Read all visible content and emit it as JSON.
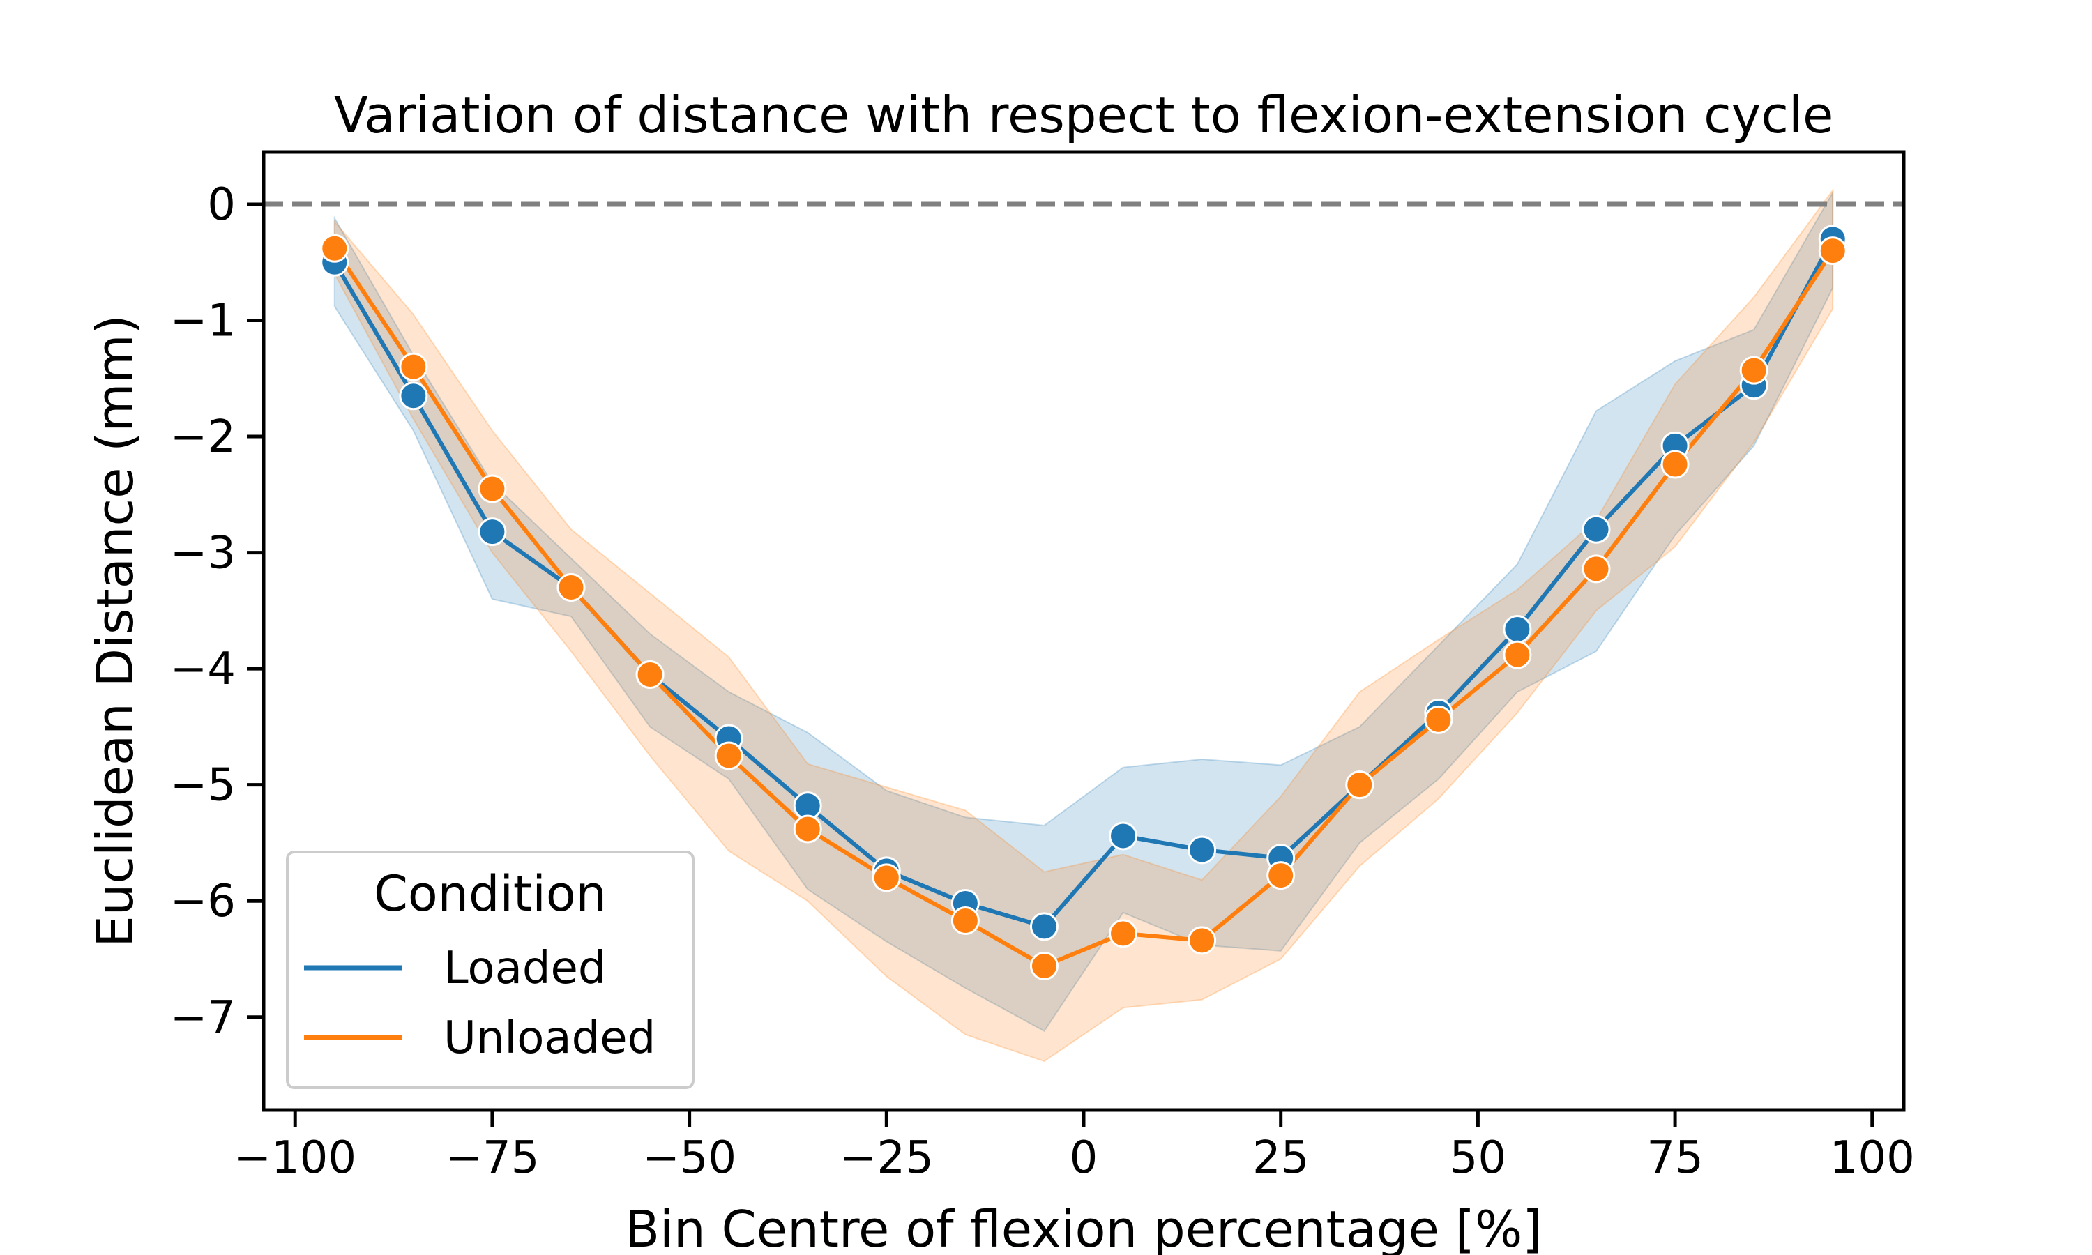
{
  "chart_data": {
    "type": "line",
    "title": "Variation of distance with respect to flexion-extension cycle",
    "xlabel": "Bin Centre of flexion percentage [%]",
    "ylabel": "Euclidean Distance (mm)",
    "xlim": [
      -104,
      104
    ],
    "ylim": [
      -7.8,
      0.45
    ],
    "x_ticks": [
      -100,
      -75,
      -50,
      -25,
      0,
      25,
      50,
      75,
      100
    ],
    "x_tick_labels": [
      "−100",
      "−75",
      "−50",
      "−25",
      "0",
      "25",
      "50",
      "75",
      "100"
    ],
    "y_ticks": [
      0,
      -1,
      -2,
      -3,
      -4,
      -5,
      -6,
      -7
    ],
    "y_tick_labels": [
      "0",
      "−1",
      "−2",
      "−3",
      "−4",
      "−5",
      "−6",
      "−7"
    ],
    "reference_line": {
      "y": 0,
      "style": "dashed",
      "color": "#808080"
    },
    "grid": false,
    "legend": {
      "title": "Condition",
      "placement": "lower-left",
      "labels": [
        "Loaded",
        "Unloaded"
      ]
    },
    "x": [
      -95,
      -85,
      -75,
      -65,
      -55,
      -45,
      -35,
      -25,
      -15,
      -5,
      5,
      15,
      25,
      35,
      45,
      55,
      65,
      75,
      85,
      95
    ],
    "series": [
      {
        "name": "Loaded",
        "color": "#1f77b4",
        "values": [
          -0.5,
          -1.65,
          -2.82,
          -3.3,
          -4.05,
          -4.6,
          -5.18,
          -5.74,
          -6.02,
          -6.22,
          -5.44,
          -5.56,
          -5.63,
          -5.0,
          -4.38,
          -3.66,
          -2.8,
          -2.08,
          -1.56,
          -0.3
        ],
        "ci_lower": [
          -0.88,
          -1.95,
          -3.4,
          -3.55,
          -4.5,
          -4.95,
          -5.9,
          -6.35,
          -6.75,
          -7.12,
          -6.1,
          -6.38,
          -6.43,
          -5.5,
          -4.95,
          -4.2,
          -3.85,
          -2.85,
          -2.08,
          -0.72
        ],
        "ci_upper": [
          -0.12,
          -1.3,
          -2.4,
          -3.05,
          -3.7,
          -4.2,
          -4.55,
          -5.05,
          -5.28,
          -5.35,
          -4.85,
          -4.78,
          -4.83,
          -4.5,
          -3.8,
          -3.1,
          -1.78,
          -1.35,
          -1.08,
          0.1
        ]
      },
      {
        "name": "Unloaded",
        "color": "#ff7f0e",
        "values": [
          -0.38,
          -1.4,
          -2.45,
          -3.3,
          -4.05,
          -4.75,
          -5.38,
          -5.8,
          -6.17,
          -6.56,
          -6.28,
          -6.34,
          -5.78,
          -5.0,
          -4.44,
          -3.88,
          -3.14,
          -2.24,
          -1.43,
          -0.4
        ],
        "ci_lower": [
          -0.6,
          -1.85,
          -3.0,
          -3.85,
          -4.75,
          -5.57,
          -6.0,
          -6.65,
          -7.15,
          -7.38,
          -6.92,
          -6.85,
          -6.5,
          -5.7,
          -5.12,
          -4.38,
          -3.5,
          -2.95,
          -2.05,
          -0.9
        ],
        "ci_upper": [
          -0.15,
          -0.95,
          -1.95,
          -2.8,
          -3.35,
          -3.9,
          -4.82,
          -5.02,
          -5.22,
          -5.75,
          -5.6,
          -5.82,
          -5.1,
          -4.2,
          -3.75,
          -3.32,
          -2.72,
          -1.55,
          -0.8,
          0.12
        ]
      }
    ]
  }
}
